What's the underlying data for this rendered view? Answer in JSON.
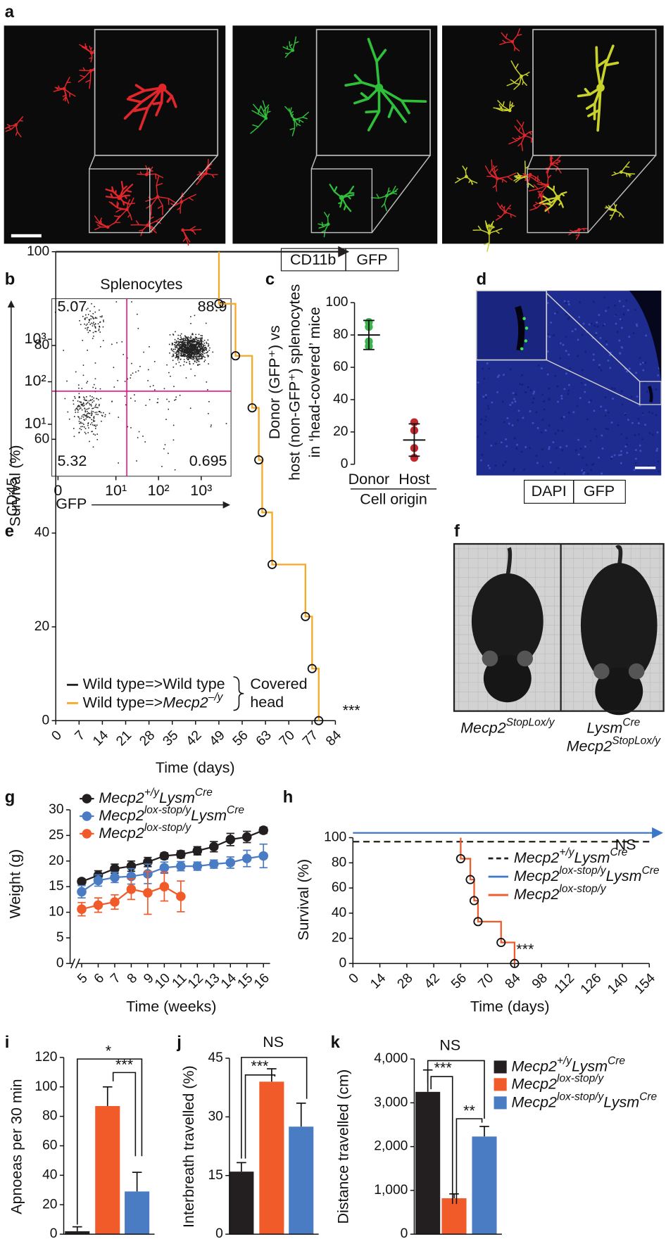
{
  "images": [
    {
      "panel": "a",
      "labels": [
        "CD11b",
        "GFP"
      ]
    },
    {
      "panel": "d",
      "labels": [
        "DAPI",
        "GFP"
      ]
    },
    {
      "panel": "f",
      "captions": [
        [
          "Mecp2StopLox/y"
        ],
        [
          "LysmCre",
          "Mecp2StopLox/y"
        ]
      ]
    }
  ],
  "chart_data": [
    {
      "panel": "b",
      "type": "scatter",
      "title": "Splenocytes",
      "xlabel": "GFP",
      "ylabel": "CD45",
      "xscale": "biexponential",
      "ylog": true,
      "xlim": [
        -0.3,
        5000
      ],
      "ylim": [
        0.6,
        9000
      ],
      "xticks": [
        0,
        {
          "value": 10,
          "label": "10¹"
        },
        {
          "value": 100,
          "label": "10²"
        },
        {
          "value": 1000,
          "label": "10³"
        }
      ],
      "yticks": [
        {
          "value": 10,
          "label": "10¹"
        },
        {
          "value": 100,
          "label": "10²"
        },
        {
          "value": 1000,
          "label": "10³"
        }
      ],
      "gates": {
        "x": 18,
        "y": 60
      },
      "gate_color": "#e6007e",
      "quadrants": {
        "upper_left": 5.07,
        "upper_right": 88.9,
        "lower_left": 5.32,
        "lower_right": 0.695
      }
    },
    {
      "panel": "c",
      "type": "dot",
      "ylabel": [
        "Donor (GFP⁺) vs",
        "host (non-GFP⁺) splenocytes",
        "in ‘head-covered’ mice"
      ],
      "xlabel": "Cell origin",
      "categories": [
        "Donor",
        "Host"
      ],
      "ylim": [
        0,
        100
      ],
      "yticks": [
        0,
        20,
        40,
        60,
        80,
        100
      ],
      "values": [
        80,
        15
      ],
      "errors": [
        9,
        10
      ],
      "points": [
        [
          88,
          85,
          76,
          73
        ],
        [
          26,
          21,
          10,
          4
        ]
      ],
      "colors": [
        "#39b54a",
        "#c1272d"
      ]
    },
    {
      "panel": "e",
      "type": "step",
      "xlabel": "Time (days)",
      "ylabel": "Survival (%)",
      "xlim": [
        0,
        84
      ],
      "ylim": [
        0,
        100
      ],
      "xticks": [
        0,
        7,
        14,
        21,
        28,
        35,
        42,
        49,
        56,
        63,
        70,
        77,
        84
      ],
      "yticks": [
        0,
        20,
        40,
        60,
        80,
        100
      ],
      "series": [
        {
          "name": "Wild type=>Wild type",
          "color": "#231f20",
          "arrow": true,
          "x": [
            0,
            84
          ],
          "values": [
            100,
            100
          ]
        },
        {
          "name": "Wild type=>Mecp2–/y",
          "color": "#f7a823",
          "markers": true,
          "x": [
            49,
            49,
            54,
            59,
            61,
            62,
            65,
            75,
            77,
            79
          ],
          "values": [
            100,
            88.9,
            77.8,
            66.7,
            55.6,
            44.4,
            33.3,
            22.2,
            11.1,
            0
          ]
        }
      ],
      "legend_group": [
        "Covered",
        "head"
      ],
      "annotations": [
        "***"
      ]
    },
    {
      "panel": "g",
      "type": "line",
      "xlabel": "Time (weeks)",
      "ylabel": "Weight (g)",
      "xlim": [
        4.3,
        16.4
      ],
      "ylim": [
        0,
        30
      ],
      "axis_break": true,
      "xticks": [
        5,
        6,
        7,
        8,
        9,
        10,
        11,
        12,
        13,
        14,
        15,
        16
      ],
      "yticks": [
        0,
        5,
        10,
        15,
        20,
        25,
        30
      ],
      "series": [
        {
          "name": "Mecp2+/yLysmCre",
          "color": "#231f20",
          "x": [
            5,
            6,
            7,
            8,
            9,
            10,
            11,
            12,
            13,
            14,
            15,
            16
          ],
          "values": [
            16,
            17.2,
            18.5,
            19,
            19.8,
            21,
            21.3,
            22,
            22.8,
            24.2,
            24.7,
            26
          ],
          "errors": [
            0.5,
            0.9,
            0.9,
            1,
            0.9,
            0.6,
            0.7,
            0.8,
            1,
            1.2,
            1.1,
            0.6
          ]
        },
        {
          "name": "Mecp2lox-stop/yLysmCre",
          "color": "#4a7cc4",
          "x": [
            5,
            6,
            7,
            8,
            9,
            10,
            11,
            12,
            13,
            14,
            15,
            16
          ],
          "values": [
            14,
            16.2,
            16.8,
            17,
            17.5,
            18.7,
            19,
            19,
            19.4,
            19.7,
            20.5,
            21
          ],
          "errors": [
            1.2,
            1.1,
            1,
            1.5,
            1.9,
            1.1,
            0.9,
            0.8,
            0.8,
            1.1,
            1.6,
            2.3
          ]
        },
        {
          "name": "Mecp2lox-stop/y",
          "color": "#f15a29",
          "x": [
            5,
            6,
            7,
            8,
            9,
            10,
            11
          ],
          "values": [
            10.6,
            11.4,
            12,
            14.5,
            13.8,
            15,
            13.1
          ],
          "errors": [
            1.3,
            1.4,
            1.4,
            2,
            4.2,
            2.8,
            3
          ]
        }
      ]
    },
    {
      "panel": "h",
      "type": "step",
      "xlabel": "Time (days)",
      "ylabel": "Survival (%)",
      "xlim": [
        0,
        154
      ],
      "ylim": [
        0,
        100
      ],
      "xticks": [
        0,
        14,
        28,
        42,
        56,
        70,
        84,
        98,
        112,
        126,
        140,
        154
      ],
      "yticks": [
        0,
        20,
        40,
        60,
        80,
        100
      ],
      "series": [
        {
          "name": "Mecp2+/yLysmCre",
          "color": "#231f20",
          "dash": true,
          "x": [
            0,
            154
          ],
          "values": [
            100,
            100
          ]
        },
        {
          "name": "Mecp2lox-stop/yLysmCre",
          "color": "#3c78c8",
          "arrow": true,
          "x": [
            0,
            154
          ],
          "values": [
            100,
            100
          ]
        },
        {
          "name": "Mecp2lox-stop/y",
          "color": "#f15a29",
          "markers": true,
          "x": [
            56,
            56,
            61,
            63,
            65,
            77,
            84
          ],
          "values": [
            100,
            83.3,
            66.7,
            50,
            33.3,
            16.7,
            0
          ]
        }
      ],
      "annotations": [
        "NS",
        "***"
      ]
    },
    {
      "panel": "i",
      "type": "bar",
      "ylabel": "Apnoeas per 30 min",
      "ylim": [
        0,
        120
      ],
      "yticks": [
        0,
        20,
        40,
        60,
        80,
        100,
        120
      ],
      "series": [
        {
          "color": "#231f20",
          "values": [
            2
          ],
          "errors": [
            3
          ]
        },
        {
          "color": "#f15a29",
          "values": [
            87
          ],
          "errors": [
            13
          ]
        },
        {
          "color": "#4a7cc4",
          "values": [
            29
          ],
          "errors": [
            13
          ]
        }
      ],
      "annotations": [
        "*",
        "***"
      ]
    },
    {
      "panel": "j",
      "type": "bar",
      "ylabel": "Interbreath travelled (%)",
      "ylim": [
        0,
        45
      ],
      "yticks": [
        0,
        15,
        30,
        45
      ],
      "series": [
        {
          "color": "#231f20",
          "values": [
            16
          ],
          "errors": [
            2.3
          ]
        },
        {
          "color": "#f15a29",
          "values": [
            39
          ],
          "errors": [
            3.3
          ]
        },
        {
          "color": "#4a7cc4",
          "values": [
            27.5
          ],
          "errors": [
            6
          ]
        }
      ],
      "annotations": [
        "NS",
        "***"
      ]
    },
    {
      "panel": "k",
      "type": "bar",
      "ylabel": "Distance travelled (cm)",
      "ylim": [
        0,
        4000
      ],
      "yticks": [
        0,
        {
          "value": 1000,
          "label": "1,000"
        },
        {
          "value": 2000,
          "label": "2,000"
        },
        {
          "value": 3000,
          "label": "3,000"
        },
        {
          "value": 4000,
          "label": "4,000"
        }
      ],
      "series": [
        {
          "name": "Mecp2+/yLysmCre",
          "color": "#231f20",
          "values": [
            3250
          ],
          "errors": [
            500
          ]
        },
        {
          "name": "Mecp2lox-stop/y",
          "color": "#f15a29",
          "values": [
            820
          ],
          "errors": [
            100
          ]
        },
        {
          "name": "Mecp2lox-stop/yLysmCre",
          "color": "#4a7cc4",
          "values": [
            2230
          ],
          "errors": [
            230
          ]
        }
      ],
      "annotations": [
        "NS",
        "***",
        "**"
      ]
    }
  ]
}
